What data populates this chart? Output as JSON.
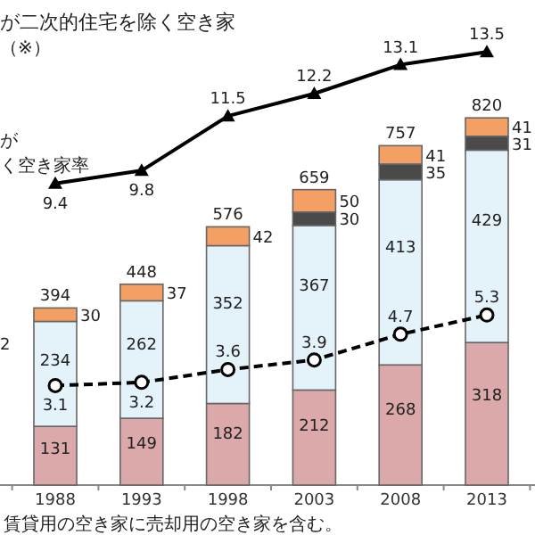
{
  "chart_data": {
    "type": "bar",
    "stacked": true,
    "data_labels": true,
    "categories": [
      "1988",
      "1993",
      "1998",
      "2003",
      "2008",
      "2013"
    ],
    "tick_labels": "x",
    "series": [
      {
        "color": "#dba9a9",
        "values": [
          131,
          149,
          182,
          212,
          268,
          318
        ]
      },
      {
        "color": "#e4f2f9",
        "values": [
          234,
          262,
          352,
          367,
          413,
          429
        ]
      },
      {
        "color": "#4a4a4a",
        "values": [
          null,
          null,
          null,
          30,
          35,
          31
        ]
      },
      {
        "color": "#f4a064",
        "values": [
          30,
          37,
          42,
          50,
          41,
          41
        ]
      },
      {
        "type": "line",
        "axis": "y2",
        "color": "#000000",
        "marker": "triangle",
        "line_style": "solid",
        "values": [
          9.4,
          9.8,
          11.5,
          12.2,
          13.1,
          13.5
        ]
      },
      {
        "type": "line",
        "axis": "y2",
        "color": "#000000",
        "marker": "circle",
        "line_style": "dashed",
        "values": [
          3.1,
          3.2,
          3.6,
          3.9,
          4.7,
          5.3
        ]
      }
    ],
    "totals": [
      "394",
      "448",
      "576",
      "659",
      "757",
      "820"
    ],
    "annotations": [
      "が二次的住宅を除く空き家",
      "（※）",
      "が",
      "く空き家率",
      "2",
      "賃貸用の空き家に売却用の空き家を含む。"
    ]
  }
}
